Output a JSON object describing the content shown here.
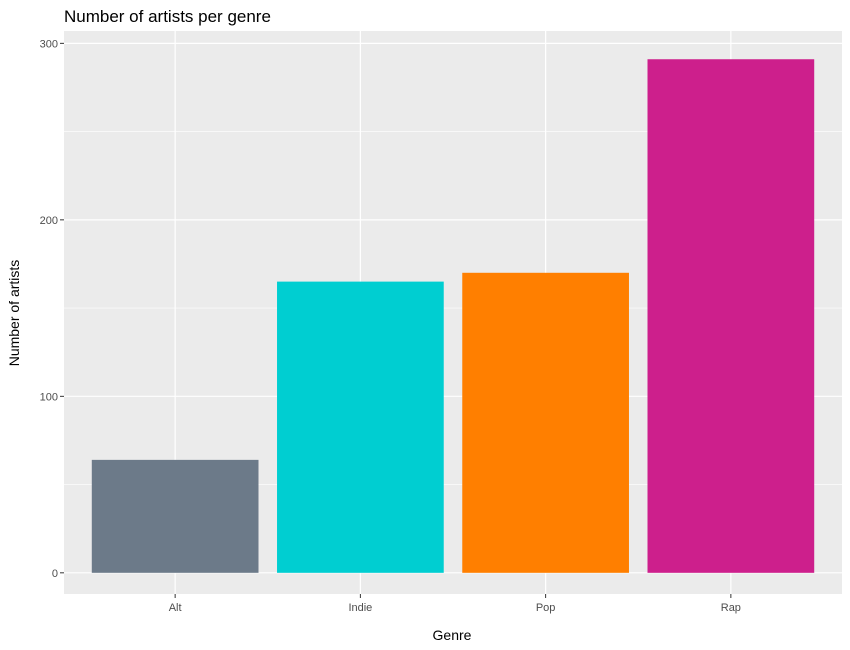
{
  "chart_data": {
    "type": "bar",
    "title": "Number of artists per genre",
    "xlabel": "Genre",
    "ylabel": "Number of artists",
    "categories": [
      "Alt",
      "Indie",
      "Pop",
      "Rap"
    ],
    "values": [
      64,
      165,
      170,
      291
    ],
    "colors": [
      "#6C7A89",
      "#00CED1",
      "#FF7F00",
      "#CD1F8C"
    ],
    "ylim": [
      -12,
      307
    ],
    "yticks": [
      0,
      100,
      200,
      300
    ],
    "grid": true,
    "legend": "none",
    "panel_background": "#EBEBEB",
    "grid_color": "#FFFFFF"
  }
}
